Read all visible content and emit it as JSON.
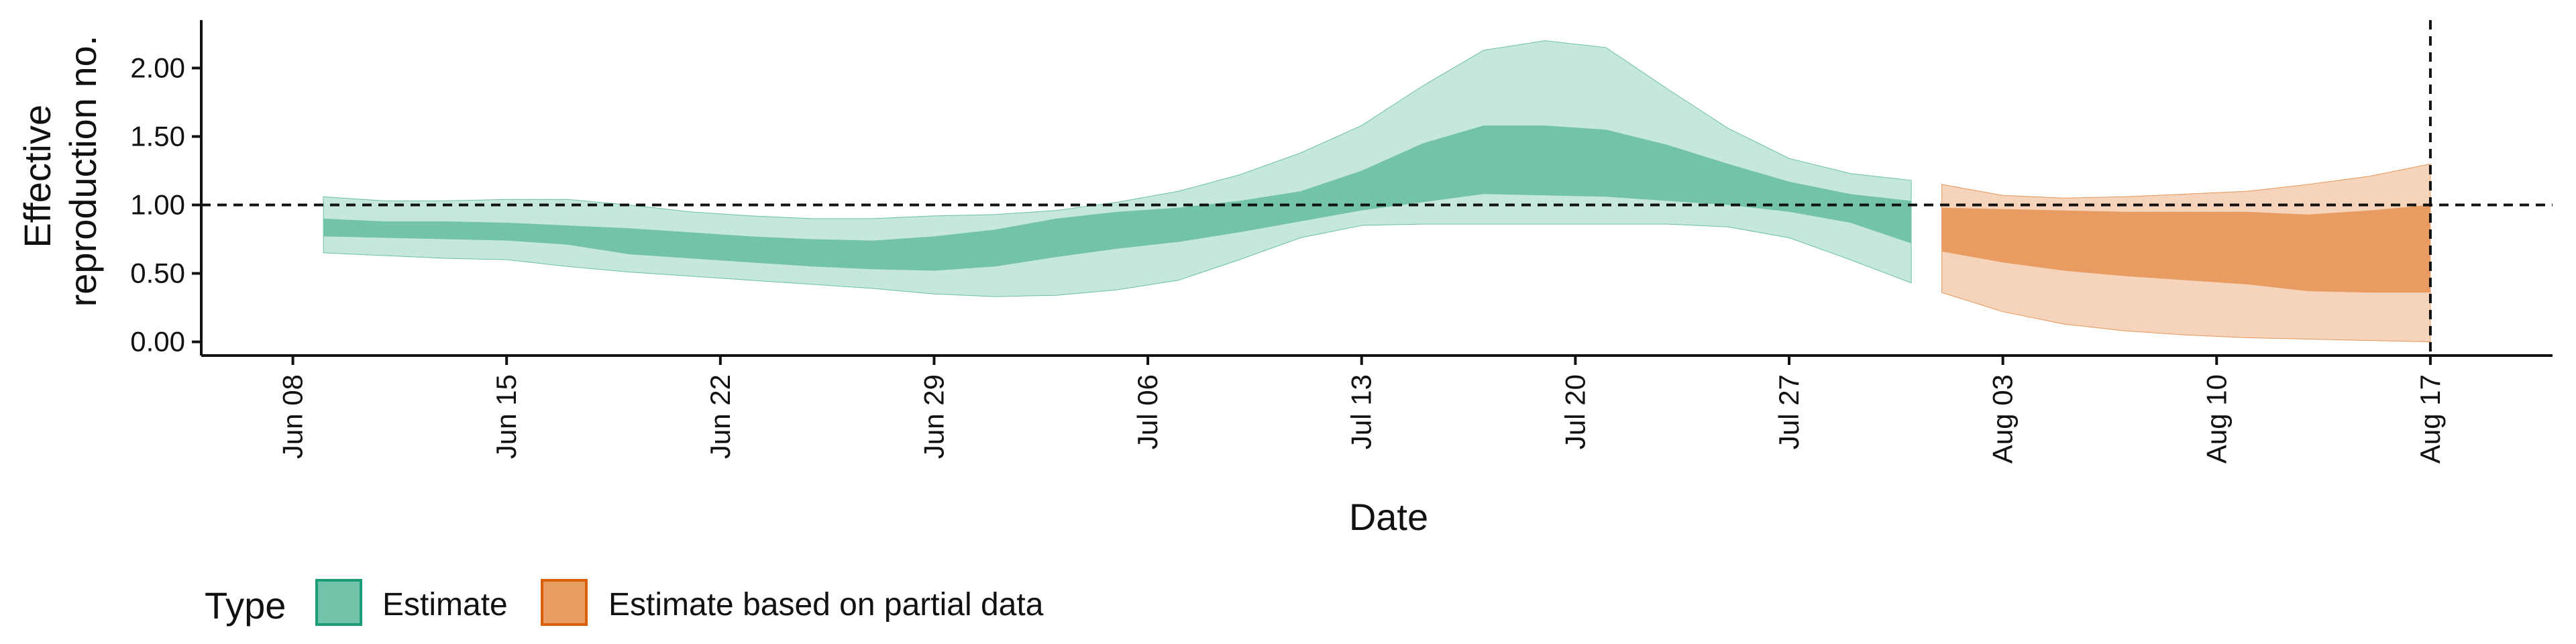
{
  "chart_data": {
    "type": "area",
    "title": "",
    "xlabel": "Date",
    "ylabel": [
      "Effective",
      "reproduction no."
    ],
    "xlim": [
      "2020-06-05",
      "2020-08-21"
    ],
    "ylim": [
      -0.1,
      2.35
    ],
    "x_ticks": [
      {
        "date": "2020-06-08",
        "label": "Jun 08"
      },
      {
        "date": "2020-06-15",
        "label": "Jun 15"
      },
      {
        "date": "2020-06-22",
        "label": "Jun 22"
      },
      {
        "date": "2020-06-29",
        "label": "Jun 29"
      },
      {
        "date": "2020-07-06",
        "label": "Jul 06"
      },
      {
        "date": "2020-07-13",
        "label": "Jul 13"
      },
      {
        "date": "2020-07-20",
        "label": "Jul 20"
      },
      {
        "date": "2020-07-27",
        "label": "Jul 27"
      },
      {
        "date": "2020-08-03",
        "label": "Aug 03"
      },
      {
        "date": "2020-08-10",
        "label": "Aug 10"
      },
      {
        "date": "2020-08-17",
        "label": "Aug 17"
      }
    ],
    "y_ticks": [
      {
        "value": 0.0,
        "label": "0.00"
      },
      {
        "value": 0.5,
        "label": "0.50"
      },
      {
        "value": 1.0,
        "label": "1.00"
      },
      {
        "value": 1.5,
        "label": "1.50"
      },
      {
        "value": 2.0,
        "label": "2.00"
      }
    ],
    "reference_lines": {
      "horizontal_y": 1.0,
      "vertical_x": "2020-08-17"
    },
    "grid": false,
    "legend": {
      "position": "bottom-left",
      "title": "Type",
      "entries": [
        {
          "label": "Estimate",
          "fill": "#72c3aa",
          "border": "#1b9e77"
        },
        {
          "label": "Estimate based on partial data",
          "fill": "#e99c61",
          "border": "#d95f02"
        }
      ]
    },
    "series": [
      {
        "name": "Estimate",
        "outer_color": "#c6e7dd",
        "inner_color": "#72c3aa",
        "edge_color": "#1b9e77",
        "points": [
          {
            "x": "2020-06-09",
            "lo90": 0.65,
            "lo50": 0.77,
            "hi50": 0.9,
            "hi90": 1.06
          },
          {
            "x": "2020-06-11",
            "lo90": 0.63,
            "lo50": 0.76,
            "hi50": 0.88,
            "hi90": 1.03
          },
          {
            "x": "2020-06-13",
            "lo90": 0.61,
            "lo50": 0.75,
            "hi50": 0.88,
            "hi90": 1.03
          },
          {
            "x": "2020-06-15",
            "lo90": 0.6,
            "lo50": 0.74,
            "hi50": 0.87,
            "hi90": 1.04
          },
          {
            "x": "2020-06-17",
            "lo90": 0.55,
            "lo50": 0.71,
            "hi50": 0.85,
            "hi90": 1.04
          },
          {
            "x": "2020-06-19",
            "lo90": 0.51,
            "lo50": 0.64,
            "hi50": 0.83,
            "hi90": 1.0
          },
          {
            "x": "2020-06-21",
            "lo90": 0.48,
            "lo50": 0.61,
            "hi50": 0.8,
            "hi90": 0.95
          },
          {
            "x": "2020-06-23",
            "lo90": 0.45,
            "lo50": 0.58,
            "hi50": 0.77,
            "hi90": 0.92
          },
          {
            "x": "2020-06-25",
            "lo90": 0.42,
            "lo50": 0.55,
            "hi50": 0.75,
            "hi90": 0.9
          },
          {
            "x": "2020-06-27",
            "lo90": 0.39,
            "lo50": 0.53,
            "hi50": 0.74,
            "hi90": 0.9
          },
          {
            "x": "2020-06-29",
            "lo90": 0.35,
            "lo50": 0.52,
            "hi50": 0.77,
            "hi90": 0.92
          },
          {
            "x": "2020-07-01",
            "lo90": 0.33,
            "lo50": 0.55,
            "hi50": 0.82,
            "hi90": 0.93
          },
          {
            "x": "2020-07-03",
            "lo90": 0.34,
            "lo50": 0.62,
            "hi50": 0.9,
            "hi90": 0.96
          },
          {
            "x": "2020-07-05",
            "lo90": 0.38,
            "lo50": 0.68,
            "hi50": 0.95,
            "hi90": 1.02
          },
          {
            "x": "2020-07-07",
            "lo90": 0.45,
            "lo50": 0.73,
            "hi50": 0.98,
            "hi90": 1.1
          },
          {
            "x": "2020-07-09",
            "lo90": 0.6,
            "lo50": 0.8,
            "hi50": 1.03,
            "hi90": 1.22
          },
          {
            "x": "2020-07-11",
            "lo90": 0.76,
            "lo50": 0.88,
            "hi50": 1.1,
            "hi90": 1.38
          },
          {
            "x": "2020-07-13",
            "lo90": 0.85,
            "lo50": 0.96,
            "hi50": 1.25,
            "hi90": 1.58
          },
          {
            "x": "2020-07-15",
            "lo90": 0.86,
            "lo50": 1.02,
            "hi50": 1.45,
            "hi90": 1.87
          },
          {
            "x": "2020-07-17",
            "lo90": 0.86,
            "lo50": 1.08,
            "hi50": 1.58,
            "hi90": 2.13
          },
          {
            "x": "2020-07-19",
            "lo90": 0.86,
            "lo50": 1.07,
            "hi50": 1.58,
            "hi90": 2.2
          },
          {
            "x": "2020-07-21",
            "lo90": 0.86,
            "lo50": 1.06,
            "hi50": 1.55,
            "hi90": 2.15
          },
          {
            "x": "2020-07-23",
            "lo90": 0.86,
            "lo50": 1.03,
            "hi50": 1.44,
            "hi90": 1.85
          },
          {
            "x": "2020-07-25",
            "lo90": 0.84,
            "lo50": 1.0,
            "hi50": 1.3,
            "hi90": 1.56
          },
          {
            "x": "2020-07-27",
            "lo90": 0.76,
            "lo50": 0.95,
            "hi50": 1.17,
            "hi90": 1.34
          },
          {
            "x": "2020-07-29",
            "lo90": 0.6,
            "lo50": 0.87,
            "hi50": 1.08,
            "hi90": 1.23
          },
          {
            "x": "2020-07-31",
            "lo90": 0.43,
            "lo50": 0.72,
            "hi50": 1.03,
            "hi90": 1.18
          }
        ]
      },
      {
        "name": "Estimate based on partial data",
        "outer_color": "#f6d4bb",
        "inner_color": "#e99c61",
        "edge_color": "#d95f02",
        "points": [
          {
            "x": "2020-08-01",
            "lo90": 0.36,
            "lo50": 0.66,
            "hi50": 0.98,
            "hi90": 1.15
          },
          {
            "x": "2020-08-03",
            "lo90": 0.22,
            "lo50": 0.58,
            "hi50": 0.97,
            "hi90": 1.07
          },
          {
            "x": "2020-08-05",
            "lo90": 0.13,
            "lo50": 0.52,
            "hi50": 0.96,
            "hi90": 1.05
          },
          {
            "x": "2020-08-07",
            "lo90": 0.08,
            "lo50": 0.48,
            "hi50": 0.95,
            "hi90": 1.06
          },
          {
            "x": "2020-08-09",
            "lo90": 0.05,
            "lo50": 0.45,
            "hi50": 0.95,
            "hi90": 1.08
          },
          {
            "x": "2020-08-11",
            "lo90": 0.03,
            "lo50": 0.42,
            "hi50": 0.95,
            "hi90": 1.1
          },
          {
            "x": "2020-08-13",
            "lo90": 0.02,
            "lo50": 0.37,
            "hi50": 0.93,
            "hi90": 1.15
          },
          {
            "x": "2020-08-15",
            "lo90": 0.01,
            "lo50": 0.36,
            "hi50": 0.96,
            "hi90": 1.21
          },
          {
            "x": "2020-08-17",
            "lo90": 0.0,
            "lo50": 0.36,
            "hi50": 1.0,
            "hi90": 1.3
          }
        ]
      }
    ]
  }
}
